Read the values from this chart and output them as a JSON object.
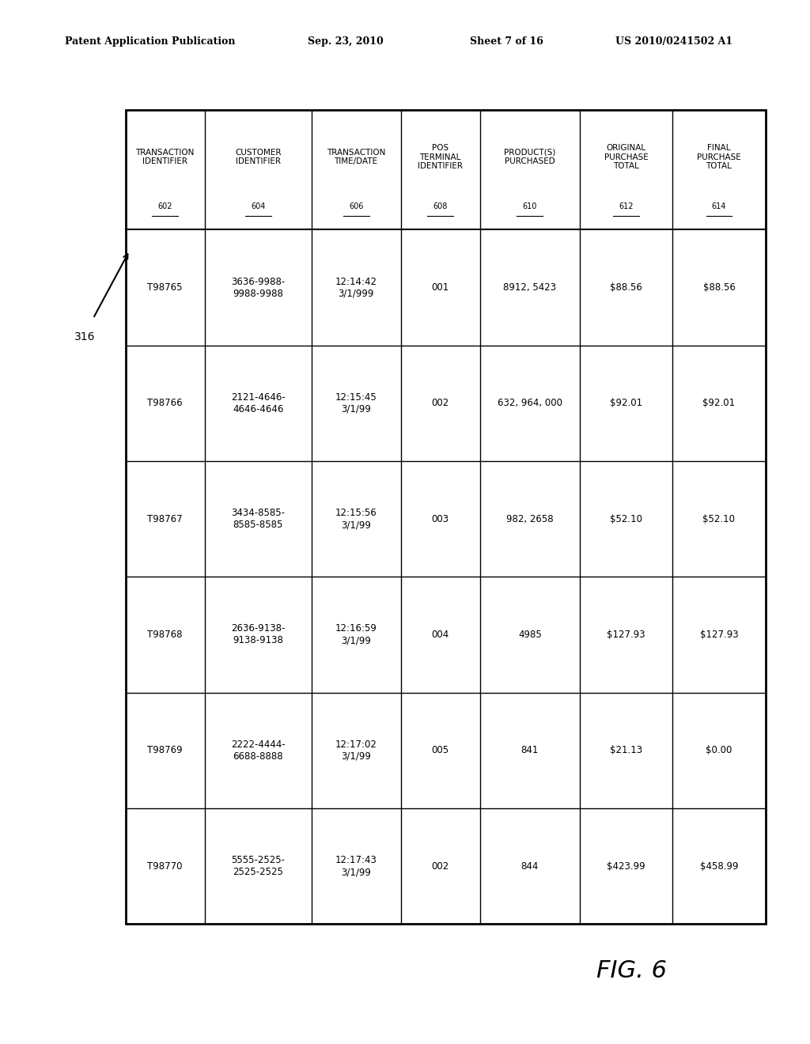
{
  "header_line1": "Patent Application Publication",
  "header_date": "Sep. 23, 2010",
  "header_sheet": "Sheet 7 of 16",
  "header_patent": "US 2010/0241502 A1",
  "figure_label": "FIG. 6",
  "arrow_label": "316",
  "columns": [
    {
      "label": "TRANSACTION\nIDENTIFIER",
      "ref": "602"
    },
    {
      "label": "CUSTOMER\nIDENTIFIER",
      "ref": "604"
    },
    {
      "label": "TRANSACTION\nTIME/DATE",
      "ref": "606"
    },
    {
      "label": "POS\nTERMINAL\nIDENTIFIER",
      "ref": "608"
    },
    {
      "label": "PRODUCT(S)\nPURCHASED",
      "ref": "610"
    },
    {
      "label": "ORIGINAL\nPURCHASE\nTOTAL",
      "ref": "612"
    },
    {
      "label": "FINAL\nPURCHASE\nTOTAL",
      "ref": "614"
    }
  ],
  "rows": [
    [
      "T98765",
      "3636-9988-\n9988-9988",
      "12:14:42\n3/1/999",
      "001",
      "8912, 5423",
      "$88.56",
      "$88.56"
    ],
    [
      "T98766",
      "2121-4646-\n4646-4646",
      "12:15:45\n3/1/99",
      "002",
      "632, 964, 000",
      "$92.01",
      "$92.01"
    ],
    [
      "T98767",
      "3434-8585-\n8585-8585",
      "12:15:56\n3/1/99",
      "003",
      "982, 2658",
      "$52.10",
      "$52.10"
    ],
    [
      "T98768",
      "2636-9138-\n9138-9138",
      "12:16:59\n3/1/99",
      "004",
      "4985",
      "$127.93",
      "$127.93"
    ],
    [
      "T98769",
      "2222-4444-\n6688-8888",
      "12:17:02\n3/1/99",
      "005",
      "841",
      "$21.13",
      "$0.00"
    ],
    [
      "T98770",
      "5555-2525-\n2525-2525",
      "12:17:43\n3/1/99",
      "002",
      "844",
      "$423.99",
      "$458.99"
    ]
  ],
  "bg_color": "#ffffff",
  "table_border_color": "#000000",
  "text_color": "#000000",
  "header_font_size": 7.5,
  "data_font_size": 8.5,
  "ref_font_size": 7.0
}
